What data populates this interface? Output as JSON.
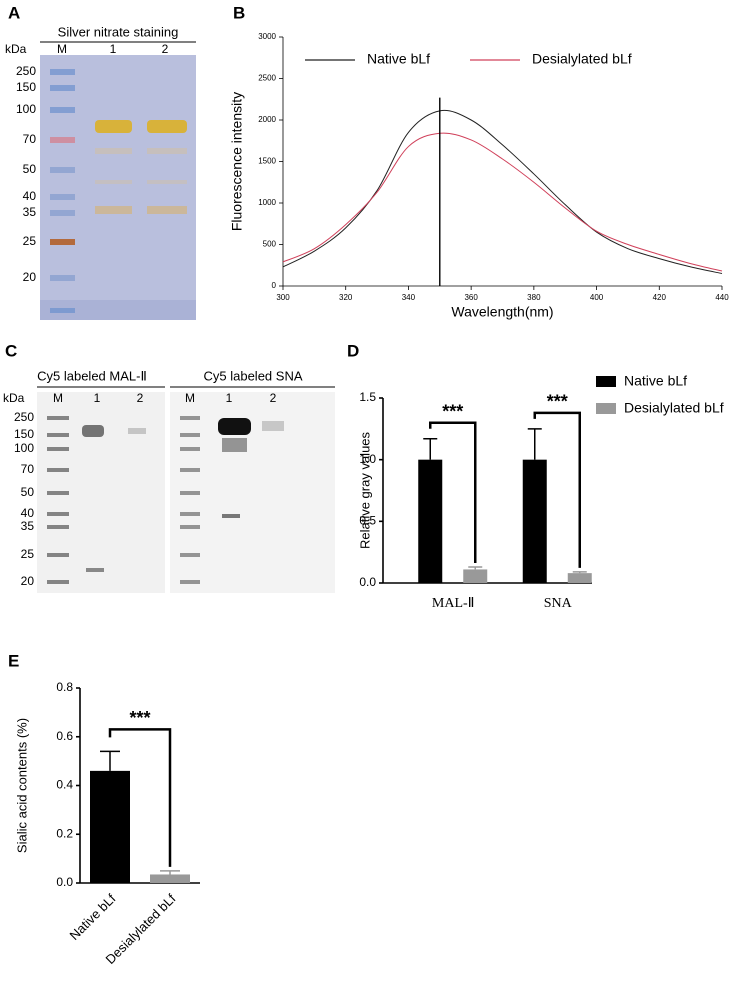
{
  "panel_labels": [
    "A",
    "B",
    "C",
    "D",
    "E"
  ],
  "gels": [
    {
      "title": "Silver nitrate staining",
      "unit": "kDa",
      "lanes": [
        "M",
        "1",
        "2"
      ],
      "markers": [
        "250",
        "150",
        "100",
        "70",
        "50",
        "40",
        "35",
        "25",
        "20"
      ]
    },
    {
      "titles": [
        "Cy5 labeled MAL-Ⅱ",
        "Cy5 labeled SNA"
      ],
      "unit": "kDa",
      "lanes": [
        "M",
        "1",
        "2",
        "M",
        "1",
        "2"
      ],
      "markers": [
        "250",
        "150",
        "100",
        "70",
        "50",
        "40",
        "35",
        "25",
        "20"
      ]
    }
  ],
  "chart_data": [
    {
      "type": "line",
      "xlabel": "Wavelength(nm)",
      "ylabel": "Fluorescence intensity",
      "x": [
        300,
        310,
        320,
        330,
        340,
        350,
        360,
        370,
        380,
        390,
        400,
        410,
        420,
        430,
        440
      ],
      "series": [
        {
          "name": "Native bLf",
          "color": "#222222",
          "values": [
            230,
            420,
            700,
            1150,
            1850,
            2110,
            2000,
            1700,
            1350,
            980,
            650,
            450,
            330,
            230,
            150
          ]
        },
        {
          "name": "Desialylated bLf",
          "color": "#d0405a",
          "values": [
            290,
            450,
            740,
            1130,
            1680,
            1840,
            1760,
            1530,
            1250,
            940,
            660,
            500,
            380,
            270,
            180
          ]
        }
      ],
      "xlim": [
        300,
        440
      ],
      "xticks": [
        300,
        320,
        340,
        360,
        380,
        400,
        420,
        440
      ],
      "ylim": [
        0,
        3000
      ],
      "yticks": [
        0,
        500,
        1000,
        1500,
        2000,
        2500,
        3000
      ],
      "vline": {
        "x": 350,
        "ymax": 2270
      },
      "legend": "top"
    },
    {
      "type": "grouped_bar",
      "ylabel": "Relative gray values",
      "categories": [
        "MAL-Ⅱ",
        "SNA"
      ],
      "series": [
        {
          "name": "Native bLf",
          "color": "#000000",
          "values": [
            1.0,
            1.0
          ],
          "errors": [
            0.17,
            0.25
          ]
        },
        {
          "name": "Desialylated bLf",
          "color": "#999999",
          "values": [
            0.11,
            0.08
          ],
          "errors": [
            0.02,
            0.01
          ]
        }
      ],
      "ylim": [
        0,
        1.5
      ],
      "yticks": [
        {
          "value": 0,
          "label": "0.0"
        },
        0.5,
        {
          "value": 1,
          "label": "1.0"
        },
        1.5
      ],
      "annotations": [
        "***",
        "***"
      ],
      "legend": "right"
    },
    {
      "type": "bar",
      "ylabel": "Sialic acid contents (%)",
      "categories": [
        "Native bLf",
        "Desialylated bLf"
      ],
      "values": [
        0.46,
        0.035
      ],
      "errors": [
        0.08,
        0.015
      ],
      "colors": [
        "#000000",
        "#999999"
      ],
      "ylim": [
        0,
        0.8
      ],
      "yticks": [
        {
          "value": 0,
          "label": "0.0"
        },
        0.2,
        0.4,
        0.6,
        0.8
      ],
      "annotations": [
        "***"
      ]
    }
  ]
}
